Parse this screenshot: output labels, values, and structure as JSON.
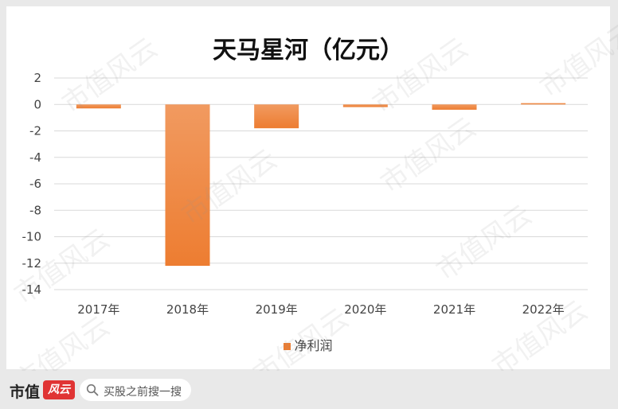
{
  "chart_data": {
    "type": "bar",
    "title": "天马星河（亿元）",
    "categories": [
      "2017年",
      "2018年",
      "2019年",
      "2020年",
      "2021年",
      "2022年"
    ],
    "series": [
      {
        "name": "净利润",
        "values": [
          -0.3,
          -12.2,
          -1.8,
          -0.2,
          -0.4,
          0.1
        ]
      }
    ],
    "ylim": [
      -14,
      2
    ],
    "yticks": [
      2,
      0,
      -2,
      -4,
      -6,
      -8,
      -10,
      -12,
      -14
    ],
    "grid": true,
    "legend_position": "bottom",
    "bar_color": "#ed7d31"
  },
  "watermark": {
    "text": "市值风云"
  },
  "footer": {
    "brand": "市值",
    "brand_badge": "风云",
    "search_text": "买股之前搜一搜"
  }
}
